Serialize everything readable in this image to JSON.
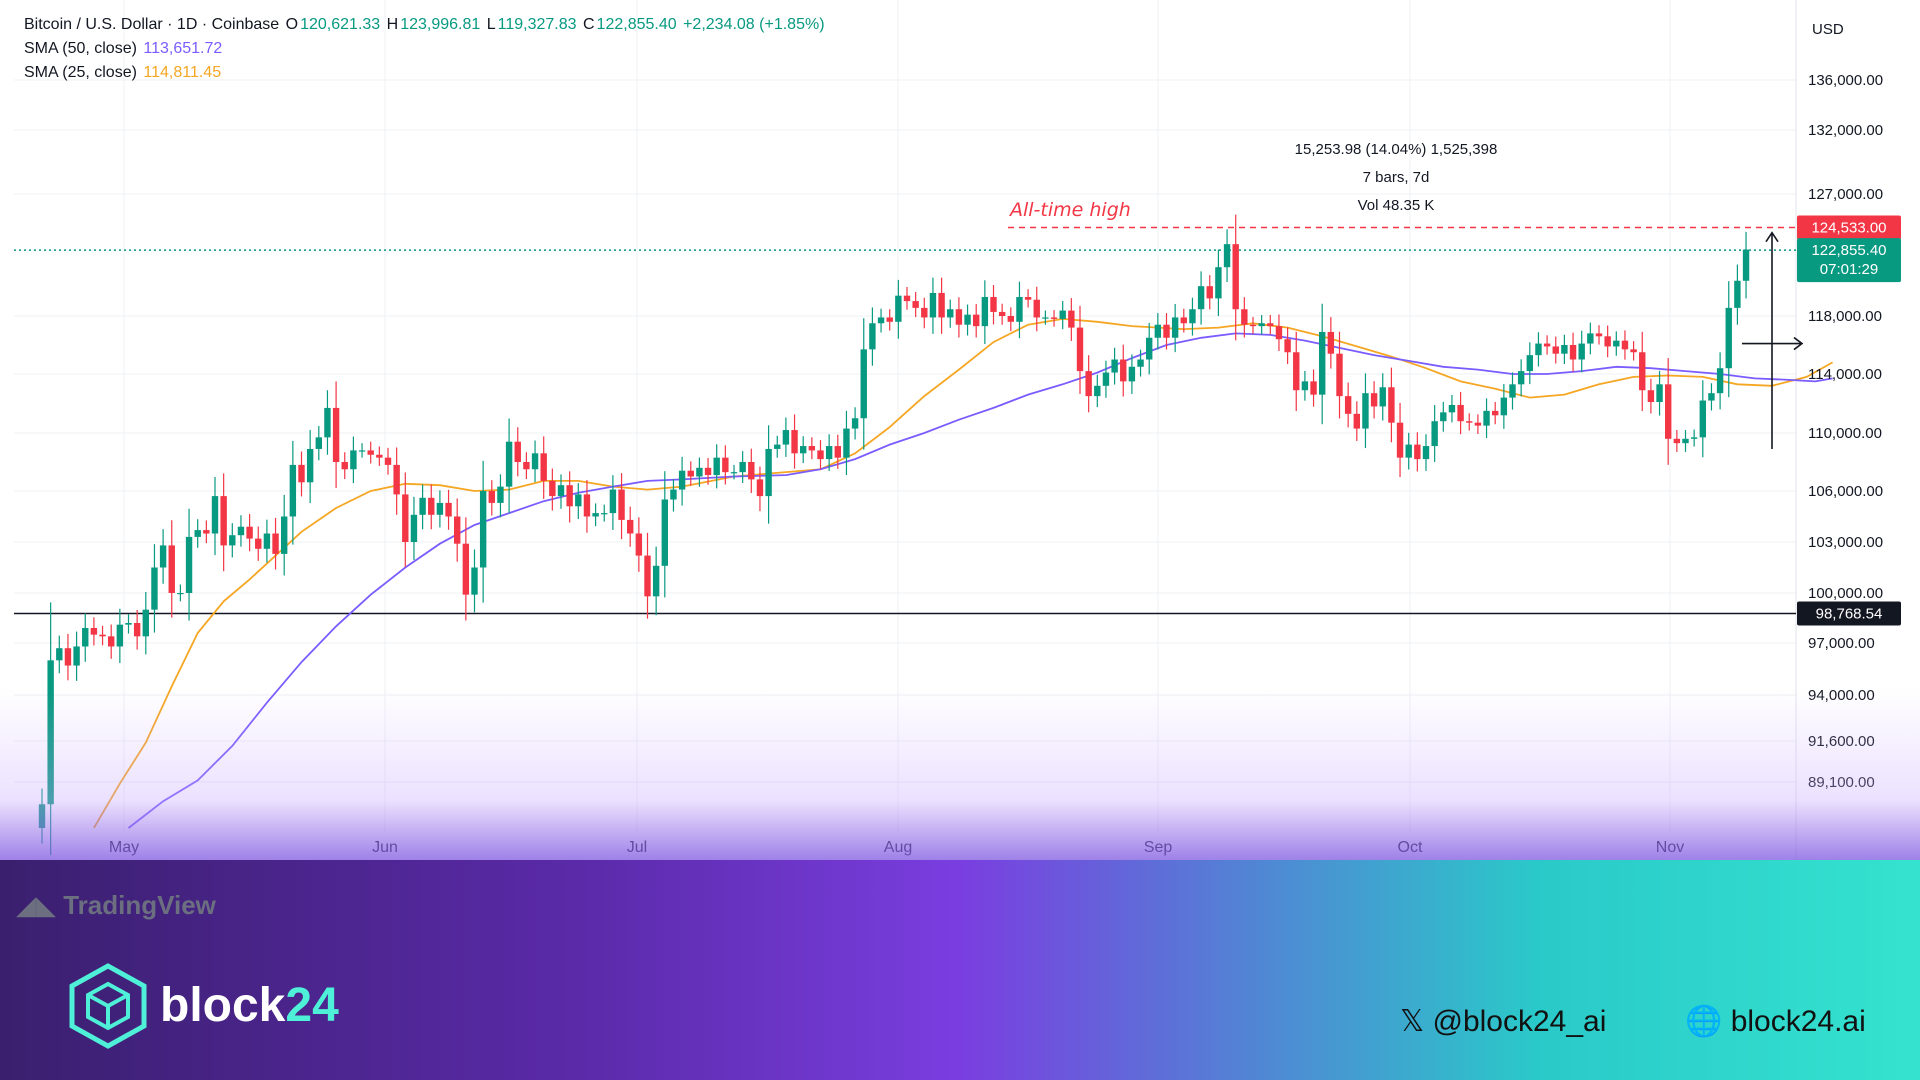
{
  "header": {
    "symbol": "Bitcoin / U.S. Dollar · 1D · Coinbase",
    "o_label": "O",
    "o_value": "120,621.33",
    "h_label": "H",
    "h_value": "123,996.81",
    "l_label": "L",
    "l_value": "119,327.83",
    "c_label": "C",
    "c_value": "122,855.40",
    "change": "+2,234.08 (+1.85%)",
    "sma50_label": "SMA (50, close)",
    "sma50_value": "113,651.72",
    "sma25_label": "SMA (25, close)",
    "sma25_value": "114,811.45"
  },
  "currency": "USD",
  "annotations": {
    "ath": "All-time high",
    "measure_line1": "15,253.98 (14.04%) 1,525,398",
    "measure_line2": "7 bars, 7d",
    "measure_line3": "Vol 48.35 K"
  },
  "price_tags": {
    "ath": "124,533.00",
    "last": "122,855.40",
    "countdown": "07:01:29",
    "support": "98,768.54"
  },
  "footer": {
    "tradingview": "TradingView",
    "brand_prefix": "block",
    "brand_suffix": "24",
    "x_handle": "𝕏 @block24_ai",
    "website": "🌐 block24.ai"
  },
  "colors": {
    "up": "#089981",
    "down": "#f23645",
    "sma50": "#7b5cff",
    "sma25": "#f5a623",
    "ath_line": "#f23645",
    "last_line": "#089981",
    "support_line": "#131722"
  },
  "chart_data": {
    "type": "candlestick",
    "title": "Bitcoin / U.S. Dollar · 1D · Coinbase",
    "x_axis_ticks": [
      "May",
      "Jun",
      "Jul",
      "Aug",
      "Sep",
      "Oct",
      "Nov"
    ],
    "y_axis_ticks": [
      136000,
      132000,
      127000,
      118000,
      114000,
      110000,
      106000,
      103000,
      100000,
      97000,
      94000,
      91600,
      89100
    ],
    "y_axis_tick_labels": [
      "136,000.00",
      "132,000.00",
      "127,000.00",
      "118,000.00",
      "114,000.00",
      "110,000.00",
      "106,000.00",
      "103,000.00",
      "100,000.00",
      "97,000.00",
      "94,000.00",
      "91,600.00",
      "89,100.00"
    ],
    "horizontal_levels": {
      "all_time_high": 124533.0,
      "last_price": 122855.4,
      "support": 98768.54
    },
    "measure": {
      "from_price": 108900,
      "to_price": 124150,
      "change": 15253.98,
      "change_pct": 14.04,
      "bars": 7,
      "volume_k": 48.35
    },
    "candles": [
      [
        86000,
        87600
      ],
      [
        87600,
        96000
      ],
      [
        96000,
        96700
      ],
      [
        96700,
        95700
      ],
      [
        95700,
        96800
      ],
      [
        96800,
        97900
      ],
      [
        97900,
        97500
      ],
      [
        97500,
        97400
      ],
      [
        97400,
        96800
      ],
      [
        96800,
        98100
      ],
      [
        98100,
        98200
      ],
      [
        98200,
        97400
      ],
      [
        97400,
        99000
      ],
      [
        99000,
        101500
      ],
      [
        101500,
        102800
      ],
      [
        102800,
        100000
      ],
      [
        100000,
        100000
      ],
      [
        100000,
        103300
      ],
      [
        103300,
        103700
      ],
      [
        103700,
        103500
      ],
      [
        103500,
        105700
      ],
      [
        105700,
        102800
      ],
      [
        102800,
        103400
      ],
      [
        103400,
        103900
      ],
      [
        103900,
        103200
      ],
      [
        103200,
        102600
      ],
      [
        102600,
        103500
      ],
      [
        103500,
        102300
      ],
      [
        102300,
        104500
      ],
      [
        104500,
        107800
      ],
      [
        107800,
        106600
      ],
      [
        106600,
        108900
      ],
      [
        108900,
        109700
      ],
      [
        109700,
        111700
      ],
      [
        111700,
        108000
      ],
      [
        108000,
        107500
      ],
      [
        107500,
        108800
      ],
      [
        108800,
        108800
      ],
      [
        108800,
        108500
      ],
      [
        108500,
        108300
      ],
      [
        108300,
        107800
      ],
      [
        107800,
        105800
      ],
      [
        105800,
        103000
      ],
      [
        103000,
        104600
      ],
      [
        104600,
        105600
      ],
      [
        105600,
        104600
      ],
      [
        104600,
        105300
      ],
      [
        105300,
        104500
      ],
      [
        104500,
        102900
      ],
      [
        102900,
        99900
      ],
      [
        99900,
        101500
      ],
      [
        101500,
        106000
      ],
      [
        106000,
        105300
      ],
      [
        105300,
        106300
      ],
      [
        106300,
        109400
      ],
      [
        109400,
        108000
      ],
      [
        108000,
        107500
      ],
      [
        107500,
        108600
      ],
      [
        108600,
        106700
      ],
      [
        106700,
        105700
      ],
      [
        105700,
        106400
      ],
      [
        106400,
        105100
      ],
      [
        105100,
        105800
      ],
      [
        105800,
        104500
      ],
      [
        104500,
        104700
      ],
      [
        104700,
        104700
      ],
      [
        104700,
        106100
      ],
      [
        106100,
        104300
      ],
      [
        104300,
        103500
      ],
      [
        103500,
        102200
      ],
      [
        102200,
        99800
      ],
      [
        99800,
        101600
      ],
      [
        101600,
        105500
      ],
      [
        105500,
        106100
      ],
      [
        106100,
        107400
      ],
      [
        107400,
        107000
      ],
      [
        107000,
        107600
      ],
      [
        107600,
        107100
      ],
      [
        107100,
        108300
      ],
      [
        108300,
        107300
      ],
      [
        107300,
        107300
      ],
      [
        107300,
        108000
      ],
      [
        108000,
        106800
      ],
      [
        106800,
        105700
      ],
      [
        105700,
        108900
      ],
      [
        108900,
        109200
      ],
      [
        109200,
        110200
      ],
      [
        110200,
        108600
      ],
      [
        108600,
        109100
      ],
      [
        109100,
        108800
      ],
      [
        108800,
        108200
      ],
      [
        108200,
        109100
      ],
      [
        109100,
        108300
      ],
      [
        108300,
        110300
      ],
      [
        110300,
        111000
      ],
      [
        111000,
        115700
      ],
      [
        115700,
        117500
      ],
      [
        117500,
        117900
      ],
      [
        117900,
        117600
      ],
      [
        117600,
        119500
      ],
      [
        119500,
        119100
      ],
      [
        119100,
        118600
      ],
      [
        118600,
        117900
      ],
      [
        117900,
        119700
      ],
      [
        119700,
        117900
      ],
      [
        117900,
        118500
      ],
      [
        118500,
        117400
      ],
      [
        117400,
        118100
      ],
      [
        118100,
        117300
      ],
      [
        117300,
        119400
      ],
      [
        119400,
        118300
      ],
      [
        118300,
        118000
      ],
      [
        118000,
        117600
      ],
      [
        117600,
        119400
      ],
      [
        119400,
        119200
      ],
      [
        119200,
        117900
      ],
      [
        117900,
        117900
      ],
      [
        117900,
        117800
      ],
      [
        117800,
        118400
      ],
      [
        118400,
        117200
      ],
      [
        117200,
        114200
      ],
      [
        114200,
        112500
      ],
      [
        112500,
        113200
      ],
      [
        113200,
        114100
      ],
      [
        114100,
        115000
      ],
      [
        115000,
        113500
      ],
      [
        113500,
        114500
      ],
      [
        114500,
        115000
      ],
      [
        115000,
        116500
      ],
      [
        116500,
        117400
      ],
      [
        117400,
        116500
      ],
      [
        116500,
        117900
      ],
      [
        117900,
        117500
      ],
      [
        117500,
        118500
      ],
      [
        118500,
        120200
      ],
      [
        120200,
        119300
      ],
      [
        119300,
        121600
      ],
      [
        121600,
        123300
      ],
      [
        123300,
        118500
      ],
      [
        118500,
        117400
      ],
      [
        117400,
        117300
      ],
      [
        117300,
        117500
      ],
      [
        117500,
        117300
      ],
      [
        117300,
        116400
      ],
      [
        116400,
        115500
      ],
      [
        115500,
        112900
      ],
      [
        112900,
        113500
      ],
      [
        113500,
        112600
      ],
      [
        112600,
        116900
      ],
      [
        116900,
        115400
      ],
      [
        115400,
        112500
      ],
      [
        112500,
        111300
      ],
      [
        111300,
        110300
      ],
      [
        110300,
        112700
      ],
      [
        112700,
        111800
      ],
      [
        111800,
        113100
      ],
      [
        113100,
        110700
      ],
      [
        110700,
        108300
      ],
      [
        108300,
        109200
      ],
      [
        109200,
        108200
      ],
      [
        108200,
        109100
      ],
      [
        109100,
        110800
      ],
      [
        110800,
        111400
      ],
      [
        111400,
        111900
      ],
      [
        111900,
        110800
      ],
      [
        110800,
        110700
      ],
      [
        110700,
        110500
      ],
      [
        110500,
        111500
      ],
      [
        111500,
        111200
      ],
      [
        111200,
        112400
      ],
      [
        112400,
        113300
      ],
      [
        113300,
        114200
      ],
      [
        114200,
        115300
      ],
      [
        115300,
        116100
      ],
      [
        116100,
        115900
      ],
      [
        115900,
        115400
      ],
      [
        115400,
        116000
      ],
      [
        116000,
        115000
      ],
      [
        115000,
        116100
      ],
      [
        116100,
        116800
      ],
      [
        116800,
        116600
      ],
      [
        116600,
        115900
      ],
      [
        115900,
        116300
      ],
      [
        116300,
        115700
      ],
      [
        115700,
        115500
      ],
      [
        115500,
        112900
      ],
      [
        112900,
        112100
      ],
      [
        112100,
        113300
      ],
      [
        113300,
        109600
      ],
      [
        109600,
        109300
      ],
      [
        109300,
        109600
      ],
      [
        109600,
        109700
      ],
      [
        109700,
        112200
      ],
      [
        112200,
        112700
      ],
      [
        112700,
        114400
      ],
      [
        114400,
        118600
      ],
      [
        118600,
        120600
      ],
      [
        120600,
        122900
      ]
    ],
    "sma25": [
      [
        6,
        86000
      ],
      [
        9,
        89000
      ],
      [
        12,
        91500
      ],
      [
        15,
        94500
      ],
      [
        18,
        97600
      ],
      [
        21,
        99500
      ],
      [
        24,
        100800
      ],
      [
        27,
        102200
      ],
      [
        30,
        103600
      ],
      [
        34,
        105000
      ],
      [
        38,
        106000
      ],
      [
        42,
        106500
      ],
      [
        46,
        106400
      ],
      [
        50,
        106000
      ],
      [
        54,
        106100
      ],
      [
        58,
        106700
      ],
      [
        62,
        106700
      ],
      [
        66,
        106300
      ],
      [
        70,
        106100
      ],
      [
        74,
        106300
      ],
      [
        80,
        107000
      ],
      [
        86,
        107300
      ],
      [
        90,
        107500
      ],
      [
        94,
        108600
      ],
      [
        98,
        110400
      ],
      [
        102,
        112500
      ],
      [
        106,
        114300
      ],
      [
        110,
        116200
      ],
      [
        114,
        117400
      ],
      [
        118,
        117800
      ],
      [
        122,
        117600
      ],
      [
        126,
        117300
      ],
      [
        132,
        117100
      ],
      [
        136,
        117200
      ],
      [
        140,
        117500
      ],
      [
        144,
        117200
      ],
      [
        148,
        116600
      ],
      [
        152,
        115900
      ],
      [
        156,
        115200
      ],
      [
        160,
        114400
      ],
      [
        164,
        113500
      ],
      [
        168,
        113000
      ],
      [
        172,
        112400
      ],
      [
        176,
        112600
      ],
      [
        180,
        113300
      ],
      [
        184,
        113800
      ],
      [
        188,
        113900
      ],
      [
        192,
        113800
      ],
      [
        196,
        113300
      ],
      [
        200,
        113200
      ],
      [
        204,
        113800
      ],
      [
        207,
        114800
      ]
    ],
    "sma50": [
      [
        10,
        86000
      ],
      [
        14,
        87800
      ],
      [
        18,
        89200
      ],
      [
        22,
        91300
      ],
      [
        26,
        93600
      ],
      [
        30,
        95900
      ],
      [
        34,
        98000
      ],
      [
        38,
        99900
      ],
      [
        42,
        101500
      ],
      [
        46,
        102900
      ],
      [
        50,
        104000
      ],
      [
        54,
        104700
      ],
      [
        58,
        105400
      ],
      [
        62,
        105900
      ],
      [
        66,
        106300
      ],
      [
        70,
        106700
      ],
      [
        74,
        106800
      ],
      [
        80,
        107000
      ],
      [
        86,
        107100
      ],
      [
        90,
        107500
      ],
      [
        94,
        108200
      ],
      [
        98,
        109200
      ],
      [
        102,
        110000
      ],
      [
        106,
        110900
      ],
      [
        110,
        111700
      ],
      [
        114,
        112600
      ],
      [
        118,
        113300
      ],
      [
        122,
        114100
      ],
      [
        126,
        115100
      ],
      [
        130,
        116000
      ],
      [
        134,
        116500
      ],
      [
        138,
        116800
      ],
      [
        142,
        116700
      ],
      [
        146,
        116300
      ],
      [
        150,
        115800
      ],
      [
        154,
        115300
      ],
      [
        158,
        114900
      ],
      [
        162,
        114500
      ],
      [
        166,
        114300
      ],
      [
        170,
        114000
      ],
      [
        174,
        114000
      ],
      [
        178,
        114200
      ],
      [
        182,
        114500
      ],
      [
        186,
        114400
      ],
      [
        190,
        114200
      ],
      [
        194,
        114000
      ],
      [
        198,
        113700
      ],
      [
        202,
        113600
      ],
      [
        205,
        113500
      ],
      [
        207,
        113700
      ]
    ]
  }
}
